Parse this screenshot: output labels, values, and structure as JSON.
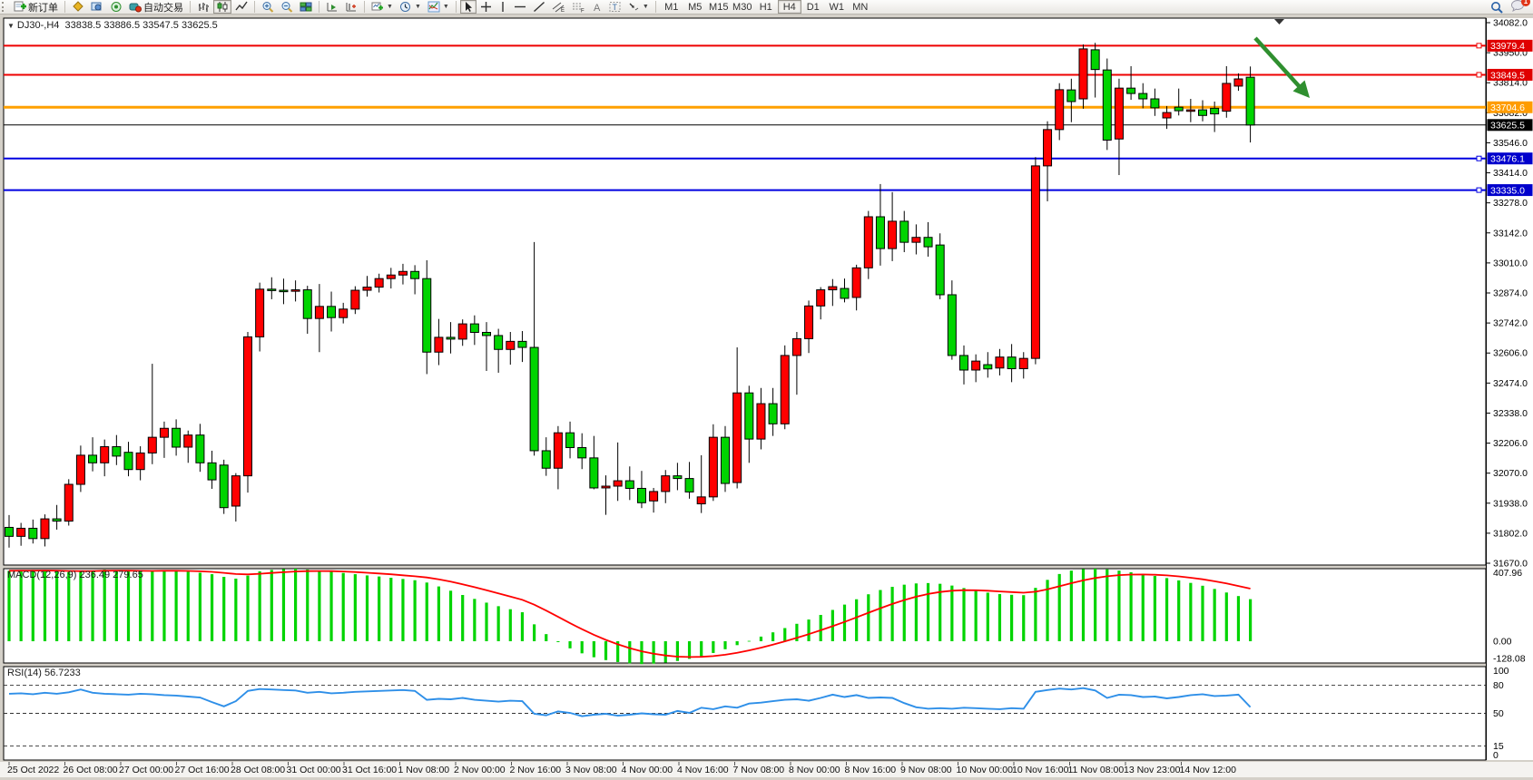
{
  "toolbar": {
    "new_order_label": "新订单",
    "autotrading_label": "自动交易",
    "timeframes": [
      "M1",
      "M5",
      "M15",
      "M30",
      "H1",
      "H4",
      "D1",
      "W1",
      "MN"
    ],
    "active_timeframe": "H4",
    "notification_count": "1"
  },
  "chart": {
    "symbol_period": "DJ30-,H4",
    "ohlc": "33838.5 33886.5 33547.5 33625.5",
    "price_axis_ticks": [
      "34082.0",
      "33950.0",
      "33814.0",
      "33682.0",
      "33546.0",
      "33414.0",
      "33278.0",
      "33142.0",
      "33010.0",
      "32874.0",
      "32742.0",
      "32606.0",
      "32474.0",
      "32338.0",
      "32206.0",
      "32070.0",
      "31938.0",
      "31802.0",
      "31670.0"
    ],
    "h_lines": [
      {
        "label": "33979.4",
        "value": 33979.4,
        "color": "#ee0000",
        "badge": "#e00000",
        "width": 2,
        "marker": true
      },
      {
        "label": "33849.5",
        "value": 33849.5,
        "color": "#ee0000",
        "badge": "#e00000",
        "width": 2,
        "marker": true
      },
      {
        "label": "33704.6",
        "value": 33704.6,
        "color": "#ffa000",
        "badge": "#ff9c00",
        "width": 3,
        "marker": false
      },
      {
        "label": "33476.1",
        "value": 33476.1,
        "color": "#0000e0",
        "badge": "#0000cc",
        "width": 2,
        "marker": true
      },
      {
        "label": "33335.0",
        "value": 33335.0,
        "color": "#0000e0",
        "badge": "#0000cc",
        "width": 2,
        "marker": true
      }
    ],
    "price_line": {
      "label": "33625.5",
      "value": 33625.5,
      "color": "#000000",
      "badge": "#000000"
    },
    "annotation_arrow_color": "#2f8f2f"
  },
  "chart_data": {
    "type": "candlestick",
    "title": "DJ30-,H4",
    "up_color": "#ff0000",
    "down_color": "#00d400",
    "ylim": [
      31670,
      34082
    ],
    "x_labels": [
      "25 Oct 2022",
      "26 Oct 08:00",
      "27 Oct 00:00",
      "27 Oct 16:00",
      "28 Oct 08:00",
      "31 Oct 00:00",
      "31 Oct 16:00",
      "1 Nov 08:00",
      "2 Nov 00:00",
      "2 Nov 16:00",
      "3 Nov 08:00",
      "4 Nov 00:00",
      "4 Nov 16:00",
      "7 Nov 08:00",
      "8 Nov 00:00",
      "8 Nov 16:00",
      "9 Nov 08:00",
      "10 Nov 00:00",
      "10 Nov 16:00",
      "11 Nov 08:00",
      "13 Nov 23:00",
      "14 Nov 12:00"
    ],
    "candles": [
      [
        31830,
        31885,
        31740,
        31790
      ],
      [
        31790,
        31850,
        31748,
        31826
      ],
      [
        31826,
        31865,
        31758,
        31780
      ],
      [
        31780,
        31888,
        31745,
        31868
      ],
      [
        31868,
        31930,
        31820,
        31858
      ],
      [
        31858,
        32045,
        31838,
        32022
      ],
      [
        32022,
        32195,
        31988,
        32152
      ],
      [
        32152,
        32232,
        32080,
        32118
      ],
      [
        32118,
        32222,
        32058,
        32190
      ],
      [
        32190,
        32242,
        32108,
        32148
      ],
      [
        32165,
        32212,
        32058,
        32088
      ],
      [
        32088,
        32192,
        32040,
        32162
      ],
      [
        32162,
        32560,
        32112,
        32232
      ],
      [
        32232,
        32302,
        32140,
        32272
      ],
      [
        32272,
        32312,
        32150,
        32188
      ],
      [
        32188,
        32262,
        32118,
        32242
      ],
      [
        32242,
        32292,
        32078,
        32118
      ],
      [
        32118,
        32172,
        32002,
        32042
      ],
      [
        32108,
        32132,
        31890,
        31918
      ],
      [
        31925,
        32072,
        31856,
        32060
      ],
      [
        32060,
        32702,
        31985,
        32680
      ],
      [
        32680,
        32922,
        32615,
        32893
      ],
      [
        32893,
        32946,
        32848,
        32888
      ],
      [
        32888,
        32940,
        32826,
        32884
      ],
      [
        32884,
        32932,
        32838,
        32890
      ],
      [
        32890,
        32908,
        32694,
        32762
      ],
      [
        32762,
        32916,
        32612,
        32816
      ],
      [
        32816,
        32882,
        32704,
        32766
      ],
      [
        32766,
        32832,
        32740,
        32804
      ],
      [
        32804,
        32906,
        32782,
        32888
      ],
      [
        32888,
        32952,
        32860,
        32902
      ],
      [
        32902,
        32962,
        32878,
        32940
      ],
      [
        32940,
        32988,
        32896,
        32956
      ],
      [
        32956,
        33006,
        32914,
        32972
      ],
      [
        32972,
        33000,
        32870,
        32940
      ],
      [
        32940,
        33022,
        32514,
        32612
      ],
      [
        32612,
        32760,
        32554,
        32678
      ],
      [
        32678,
        32746,
        32606,
        32670
      ],
      [
        32670,
        32758,
        32640,
        32738
      ],
      [
        32738,
        32776,
        32644,
        32700
      ],
      [
        32700,
        32746,
        32528,
        32686
      ],
      [
        32686,
        32716,
        32520,
        32624
      ],
      [
        32624,
        32702,
        32556,
        32660
      ],
      [
        32660,
        32706,
        32568,
        32633
      ],
      [
        32633,
        33103,
        32150,
        32172
      ],
      [
        32172,
        32232,
        32060,
        32094
      ],
      [
        32094,
        32282,
        32000,
        32252
      ],
      [
        32252,
        32302,
        32138,
        32186
      ],
      [
        32186,
        32250,
        32090,
        32140
      ],
      [
        32140,
        32238,
        32000,
        32006
      ],
      [
        32006,
        32062,
        31886,
        32014
      ],
      [
        32014,
        32209,
        31948,
        32038
      ],
      [
        32038,
        32102,
        31952,
        32004
      ],
      [
        32004,
        32082,
        31916,
        31940
      ],
      [
        31948,
        32006,
        31896,
        31990
      ],
      [
        31990,
        32086,
        31938,
        32060
      ],
      [
        32060,
        32118,
        31996,
        32048
      ],
      [
        32048,
        32122,
        31958,
        31988
      ],
      [
        31935,
        32152,
        31894,
        31966
      ],
      [
        31966,
        32290,
        31948,
        32232
      ],
      [
        32232,
        32282,
        31988,
        32026
      ],
      [
        32030,
        32633,
        32004,
        32430
      ],
      [
        32430,
        32462,
        32118,
        32224
      ],
      [
        32224,
        32452,
        32178,
        32382
      ],
      [
        32382,
        32452,
        32238,
        32292
      ],
      [
        32292,
        32642,
        32268,
        32597
      ],
      [
        32597,
        32702,
        32422,
        32672
      ],
      [
        32672,
        32842,
        32608,
        32818
      ],
      [
        32818,
        32902,
        32758,
        32890
      ],
      [
        32890,
        32938,
        32818,
        32904
      ],
      [
        32896,
        32940,
        32834,
        32852
      ],
      [
        32856,
        33002,
        32798,
        32988
      ],
      [
        32988,
        33242,
        32938,
        33216
      ],
      [
        33216,
        33362,
        32998,
        33074
      ],
      [
        33074,
        33326,
        33018,
        33196
      ],
      [
        33196,
        33242,
        33058,
        33102
      ],
      [
        33102,
        33182,
        33048,
        33124
      ],
      [
        33124,
        33192,
        33038,
        33082
      ],
      [
        33090,
        33142,
        32848,
        32868
      ],
      [
        32868,
        32932,
        32578,
        32597
      ],
      [
        32597,
        32642,
        32468,
        32532
      ],
      [
        32532,
        32602,
        32478,
        32572
      ],
      [
        32556,
        32612,
        32498,
        32537
      ],
      [
        32541,
        32626,
        32508,
        32590
      ],
      [
        32590,
        32648,
        32478,
        32538
      ],
      [
        32538,
        32612,
        32494,
        32584
      ],
      [
        32584,
        33482,
        32558,
        33443
      ],
      [
        33443,
        33642,
        33285,
        33605
      ],
      [
        33605,
        33812,
        33558,
        33783
      ],
      [
        33782,
        33832,
        33638,
        33730
      ],
      [
        33742,
        33985,
        33698,
        33965
      ],
      [
        33961,
        33992,
        33748,
        33873
      ],
      [
        33871,
        33922,
        33514,
        33558
      ],
      [
        33563,
        33832,
        33402,
        33790
      ],
      [
        33790,
        33888,
        33738,
        33766
      ],
      [
        33766,
        33812,
        33700,
        33742
      ],
      [
        33742,
        33788,
        33666,
        33702
      ],
      [
        33657,
        33710,
        33608,
        33681
      ],
      [
        33705,
        33788,
        33668,
        33689
      ],
      [
        33690,
        33742,
        33638,
        33693
      ],
      [
        33693,
        33736,
        33642,
        33668
      ],
      [
        33700,
        33730,
        33594,
        33675
      ],
      [
        33687,
        33888,
        33658,
        33811
      ],
      [
        33799,
        33856,
        33778,
        33831
      ],
      [
        33838.5,
        33886.5,
        33547.5,
        33625.5
      ]
    ],
    "indicators": {
      "macd": {
        "label": "MACD(12,26,9)",
        "values_text": "236.49 279.65",
        "main_value": 236.49,
        "signal_value": 279.65,
        "axis": [
          "407.96",
          "0.00",
          "-128.08"
        ],
        "max": 407.96,
        "min": -128.08,
        "signal_period": 9,
        "hist_color": "#00d400",
        "signal_color": "#ff0000",
        "histogram": [
          396,
          399,
          401,
          398,
          393,
          389,
          391,
          397,
          403,
          400,
          395,
          391,
          394,
          400,
          396,
          391,
          385,
          377,
          362,
          352,
          369,
          393,
          401,
          406,
          408,
          403,
          397,
          391,
          384,
          377,
          370,
          364,
          357,
          350,
          343,
          330,
          308,
          284,
          260,
          238,
          217,
          197,
          180,
          163,
          95,
          40,
          -5,
          -40,
          -68,
          -90,
          -106,
          -117,
          -124,
          -128,
          -126,
          -120,
          -111,
          -99,
          -84,
          -66,
          -45,
          -22,
          2,
          26,
          50,
          74,
          98,
          122,
          148,
          176,
          206,
          236,
          264,
          288,
          306,
          318,
          325,
          327,
          323,
          313,
          299,
          285,
          273,
          265,
          261,
          259,
          300,
          345,
          378,
          397,
          406,
          408,
          404,
          397,
          388,
          378,
          367,
          355,
          342,
          328,
          312,
          294,
          274,
          254,
          236.5
        ]
      },
      "rsi": {
        "label": "RSI(14)",
        "value_text": "56.7233",
        "axis": [
          "100",
          "80",
          "50",
          "15",
          "0"
        ],
        "levels": [
          80,
          50,
          15
        ],
        "range": [
          0,
          100
        ],
        "color": "#2e8fe8",
        "values": [
          71,
          71.5,
          70.5,
          72,
          71,
          72.5,
          75.5,
          72,
          71,
          70.5,
          70,
          71,
          70.5,
          69.5,
          69,
          68,
          67,
          62,
          57.5,
          63,
          74,
          76,
          75.5,
          75,
          74.5,
          72,
          73,
          71.5,
          72,
          73,
          73.5,
          74,
          74.5,
          75,
          74,
          64.5,
          65.5,
          65,
          66.5,
          64.5,
          63.5,
          62.5,
          63.5,
          63,
          49.5,
          48,
          52,
          50.5,
          47,
          48.5,
          49.5,
          47.5,
          48.5,
          50,
          49,
          48.5,
          52.5,
          50.5,
          56,
          54.5,
          57.5,
          56,
          60.5,
          61.5,
          63,
          64.5,
          65,
          63.5,
          66.5,
          70,
          67.5,
          69.5,
          66.5,
          67,
          66.5,
          61,
          56.5,
          55,
          55.5,
          55,
          56,
          55.5,
          55,
          54.5,
          55.5,
          55,
          73,
          75,
          76.5,
          75.5,
          77,
          74.5,
          66.5,
          70,
          69.5,
          67.5,
          68,
          66,
          67.5,
          69.5,
          70.5,
          68.5,
          69,
          70,
          56.72
        ]
      }
    }
  }
}
